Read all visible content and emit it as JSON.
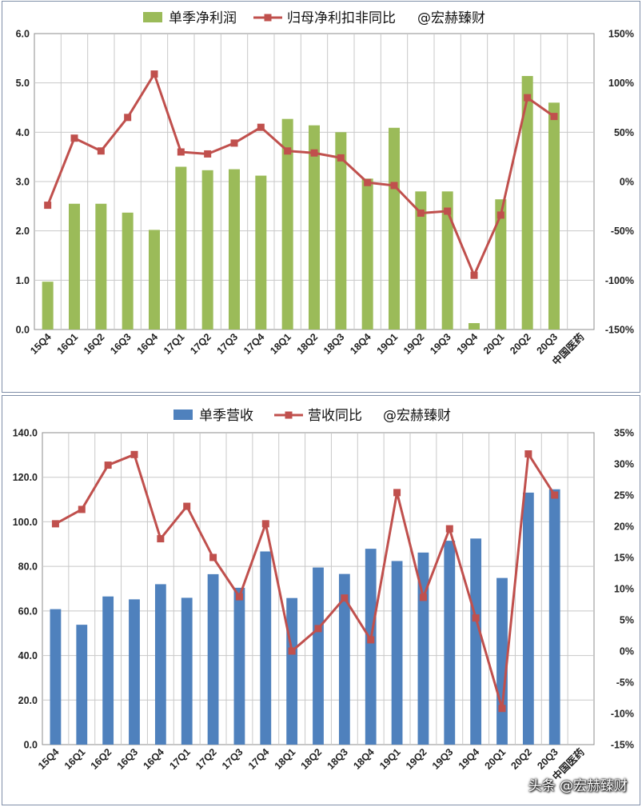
{
  "watermark": "头条 @宏赫臻财",
  "chart_data": [
    {
      "type": "bar",
      "legend": [
        "单季净利润",
        "归母净利扣非同比",
        "@宏赫臻财"
      ],
      "categories": [
        "15Q4",
        "16Q1",
        "16Q2",
        "16Q3",
        "16Q4",
        "17Q1",
        "17Q2",
        "17Q3",
        "17Q4",
        "18Q1",
        "18Q2",
        "18Q3",
        "18Q4",
        "19Q1",
        "19Q2",
        "19Q3",
        "19Q4",
        "20Q1",
        "20Q2",
        "20Q3",
        "中国医药"
      ],
      "series": [
        {
          "name": "单季净利润",
          "kind": "bar",
          "axis": "left",
          "color": "#9bbb59",
          "values": [
            0.97,
            2.55,
            2.55,
            2.37,
            2.02,
            3.3,
            3.23,
            3.25,
            3.12,
            4.27,
            4.14,
            4.0,
            3.06,
            4.09,
            2.8,
            2.8,
            0.13,
            2.64,
            5.14,
            4.6,
            null
          ]
        },
        {
          "name": "归母净利扣非同比",
          "kind": "line",
          "axis": "right",
          "color": "#c0504d",
          "values": [
            -24,
            44,
            31,
            65,
            109,
            30,
            28,
            39,
            55,
            31,
            29,
            24,
            -1,
            -4,
            -32,
            -30,
            -95,
            -34,
            85,
            66,
            null
          ]
        }
      ],
      "ylim_left": [
        0,
        6.0
      ],
      "yticks_left": [
        "0.0",
        "1.0",
        "2.0",
        "3.0",
        "4.0",
        "5.0",
        "6.0"
      ],
      "ylim_right": [
        -150,
        150
      ],
      "yticks_right": [
        "-150%",
        "-100%",
        "-50%",
        "0%",
        "50%",
        "100%",
        "150%"
      ]
    },
    {
      "type": "bar",
      "legend": [
        "单季营收",
        "营收同比",
        "@宏赫臻财"
      ],
      "categories": [
        "15Q4",
        "16Q1",
        "16Q2",
        "16Q3",
        "16Q4",
        "17Q1",
        "17Q2",
        "17Q3",
        "17Q4",
        "18Q1",
        "18Q2",
        "18Q3",
        "18Q4",
        "19Q1",
        "19Q2",
        "19Q3",
        "19Q4",
        "20Q1",
        "20Q2",
        "20Q3",
        "中国医药"
      ],
      "series": [
        {
          "name": "单季营收",
          "kind": "bar",
          "axis": "left",
          "color": "#4f81bd",
          "values": [
            60.8,
            53.8,
            66.5,
            65.2,
            72.0,
            65.9,
            76.5,
            70.4,
            86.7,
            65.8,
            79.5,
            76.6,
            87.9,
            82.4,
            86.2,
            91.5,
            92.5,
            74.8,
            113.1,
            114.6,
            null
          ]
        },
        {
          "name": "营收同比",
          "kind": "line",
          "axis": "right",
          "color": "#c0504d",
          "values": [
            20.4,
            22.7,
            29.8,
            31.5,
            18.0,
            23.2,
            15.0,
            8.7,
            20.4,
            0.0,
            3.6,
            8.5,
            1.8,
            25.4,
            8.6,
            19.6,
            5.3,
            -9.2,
            31.6,
            25.0,
            null
          ]
        }
      ],
      "ylim_left": [
        0,
        140
      ],
      "yticks_left": [
        "0.0",
        "20.0",
        "40.0",
        "60.0",
        "80.0",
        "100.0",
        "120.0",
        "140.0"
      ],
      "ylim_right": [
        -15,
        35
      ],
      "yticks_right": [
        "-15%",
        "-10%",
        "-5%",
        "0%",
        "5%",
        "10%",
        "15%",
        "20%",
        "25%",
        "30%",
        "35%"
      ]
    }
  ]
}
